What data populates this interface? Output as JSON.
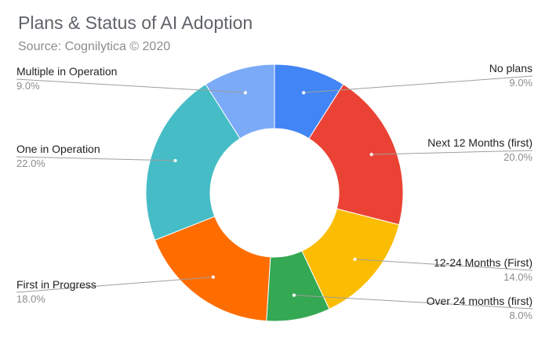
{
  "header": {
    "title": "Plans & Status of AI Adoption",
    "subtitle": "Source: Cognilytica © 2020"
  },
  "chart_data": {
    "type": "pie",
    "donut": true,
    "title": "Plans & Status of AI Adoption",
    "subtitle": "Source: Cognilytica © 2020",
    "legend": "labels outside slices with leader lines",
    "slices": [
      {
        "label": "No plans",
        "value": 9.0,
        "display": "9.0%",
        "color": "#4285f4"
      },
      {
        "label": "Next 12 Months (first)",
        "value": 20.0,
        "display": "20.0%",
        "color": "#ea4335"
      },
      {
        "label": "12-24 Months (First)",
        "value": 14.0,
        "display": "14.0%",
        "color": "#fbbc04"
      },
      {
        "label": "Over 24 months (first)",
        "value": 8.0,
        "display": "8.0%",
        "color": "#34a853"
      },
      {
        "label": "First in Progress",
        "value": 18.0,
        "display": "18.0%",
        "color": "#ff6d01"
      },
      {
        "label": "One in Operation",
        "value": 22.0,
        "display": "22.0%",
        "color": "#46bdc6"
      },
      {
        "label": "Multiple in Operation",
        "value": 9.0,
        "display": "9.0%",
        "color": "#7baaf7"
      }
    ]
  }
}
